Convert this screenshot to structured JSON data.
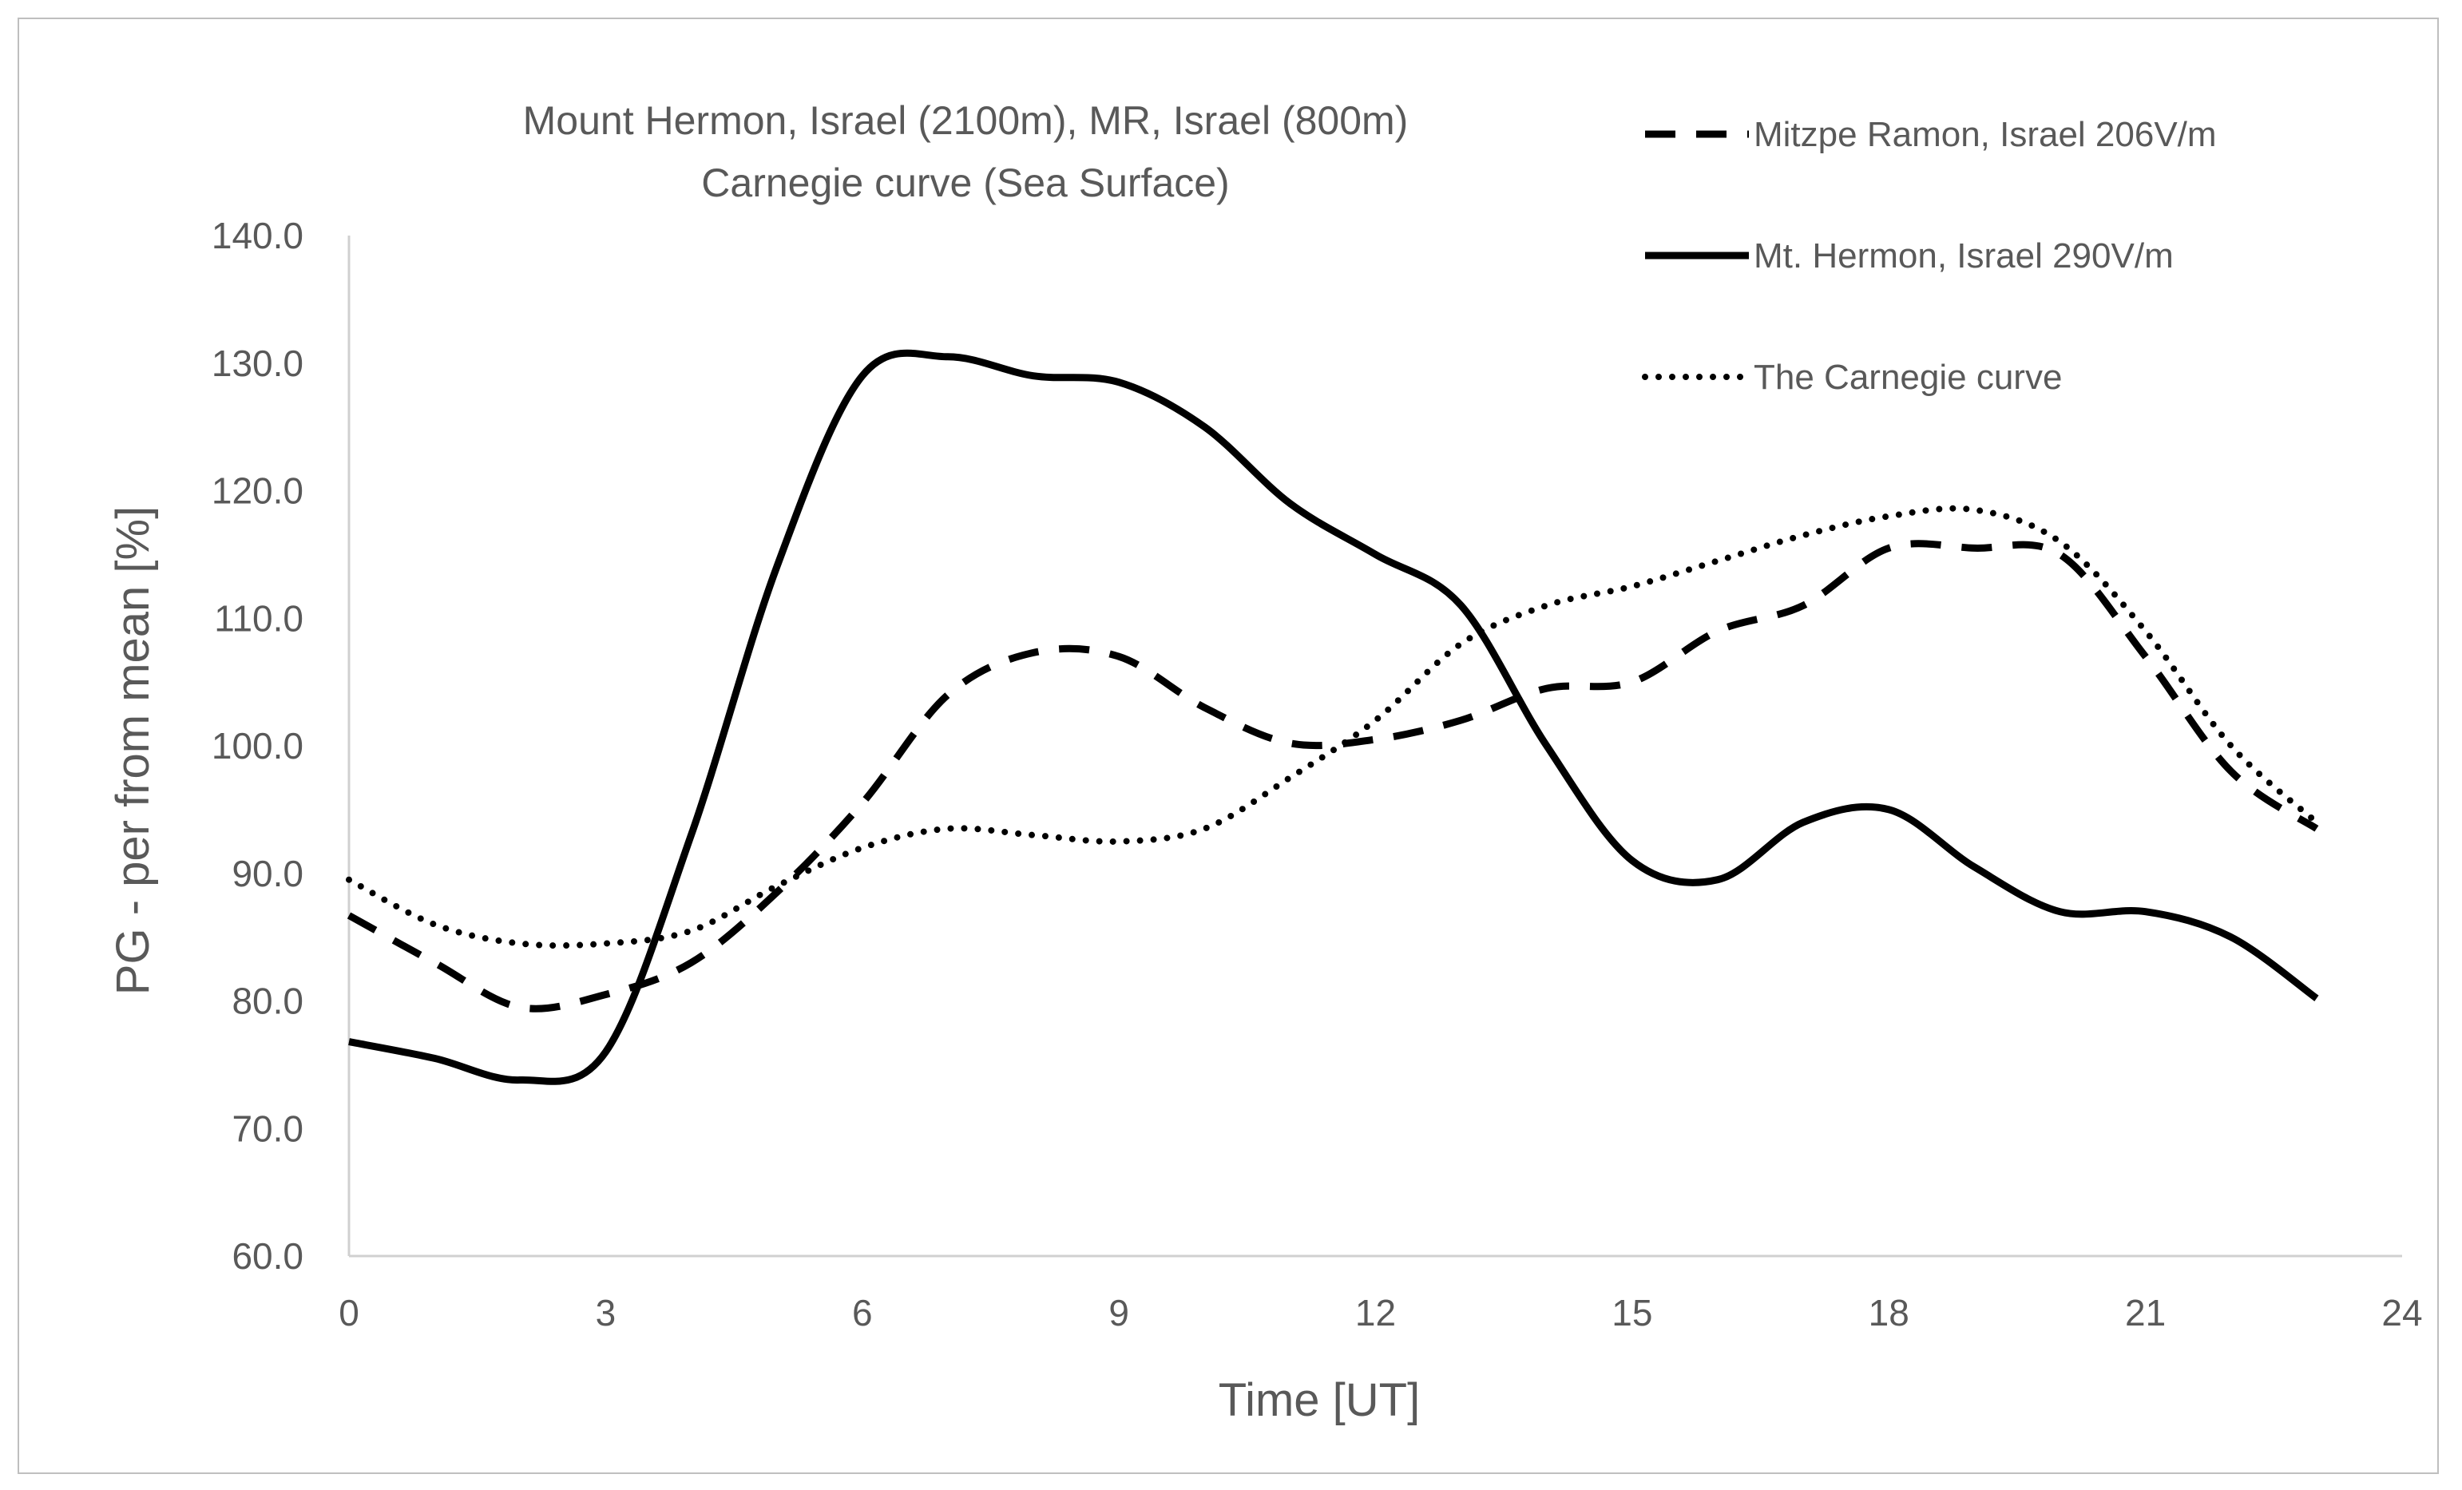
{
  "chart_data": {
    "type": "line",
    "title": [
      "Mount Hermon, Israel (2100m), MR, Israel (800m)",
      "Carnegie curve (Sea Surface)"
    ],
    "xlabel": "Time [UT]",
    "ylabel": "PG - per from mean [%]",
    "xlim": [
      0,
      24
    ],
    "ylim": [
      60,
      140
    ],
    "xticks": [
      0,
      3,
      6,
      9,
      12,
      15,
      18,
      21,
      24
    ],
    "yticks": [
      60,
      70,
      80,
      90,
      100,
      110,
      120,
      130,
      140
    ],
    "ytick_labels": [
      "60.0",
      "70.0",
      "80.0",
      "90.0",
      "100.0",
      "110.0",
      "120.0",
      "130.0",
      "140.0"
    ],
    "grid": false,
    "legend_position": "top-right",
    "x": [
      0,
      1,
      2,
      3,
      4,
      5,
      6,
      7,
      8,
      9,
      10,
      11,
      12,
      13,
      14,
      15,
      16,
      17,
      18,
      19,
      20,
      21,
      22,
      23
    ],
    "series": [
      {
        "name": "Mitzpe Ramon, Israel 206V/m",
        "style": "dashed",
        "values": [
          86.7,
          83.0,
          79.5,
          80.5,
          83.0,
          88.5,
          95.5,
          104.0,
          107.3,
          107.0,
          103.0,
          100.2,
          100.5,
          102.0,
          104.5,
          105.0,
          109.0,
          111.0,
          115.5,
          115.5,
          115.0,
          107.0,
          98.0,
          93.5
        ]
      },
      {
        "name": "Mt. Hermon, Israel 290V/m",
        "style": "solid",
        "values": [
          76.8,
          75.5,
          73.8,
          76.0,
          93.0,
          114.0,
          129.0,
          130.5,
          129.0,
          128.5,
          125.0,
          119.0,
          115.0,
          111.0,
          100.0,
          91.0,
          89.5,
          94.0,
          95.0,
          90.5,
          87.0,
          87.0,
          85.0,
          80.2
        ]
      },
      {
        "name": "The Carnegie curve",
        "style": "dotted",
        "values": [
          89.5,
          86.0,
          84.5,
          84.5,
          85.5,
          89.0,
          92.0,
          93.5,
          93.0,
          92.5,
          93.5,
          97.5,
          102.0,
          108.0,
          111.0,
          112.5,
          114.5,
          116.5,
          118.0,
          118.5,
          116.0,
          109.0,
          100.0,
          94.0
        ]
      }
    ],
    "colors": {
      "line": "#000000",
      "text": "#595959",
      "axis": "#d0d0d0"
    }
  }
}
